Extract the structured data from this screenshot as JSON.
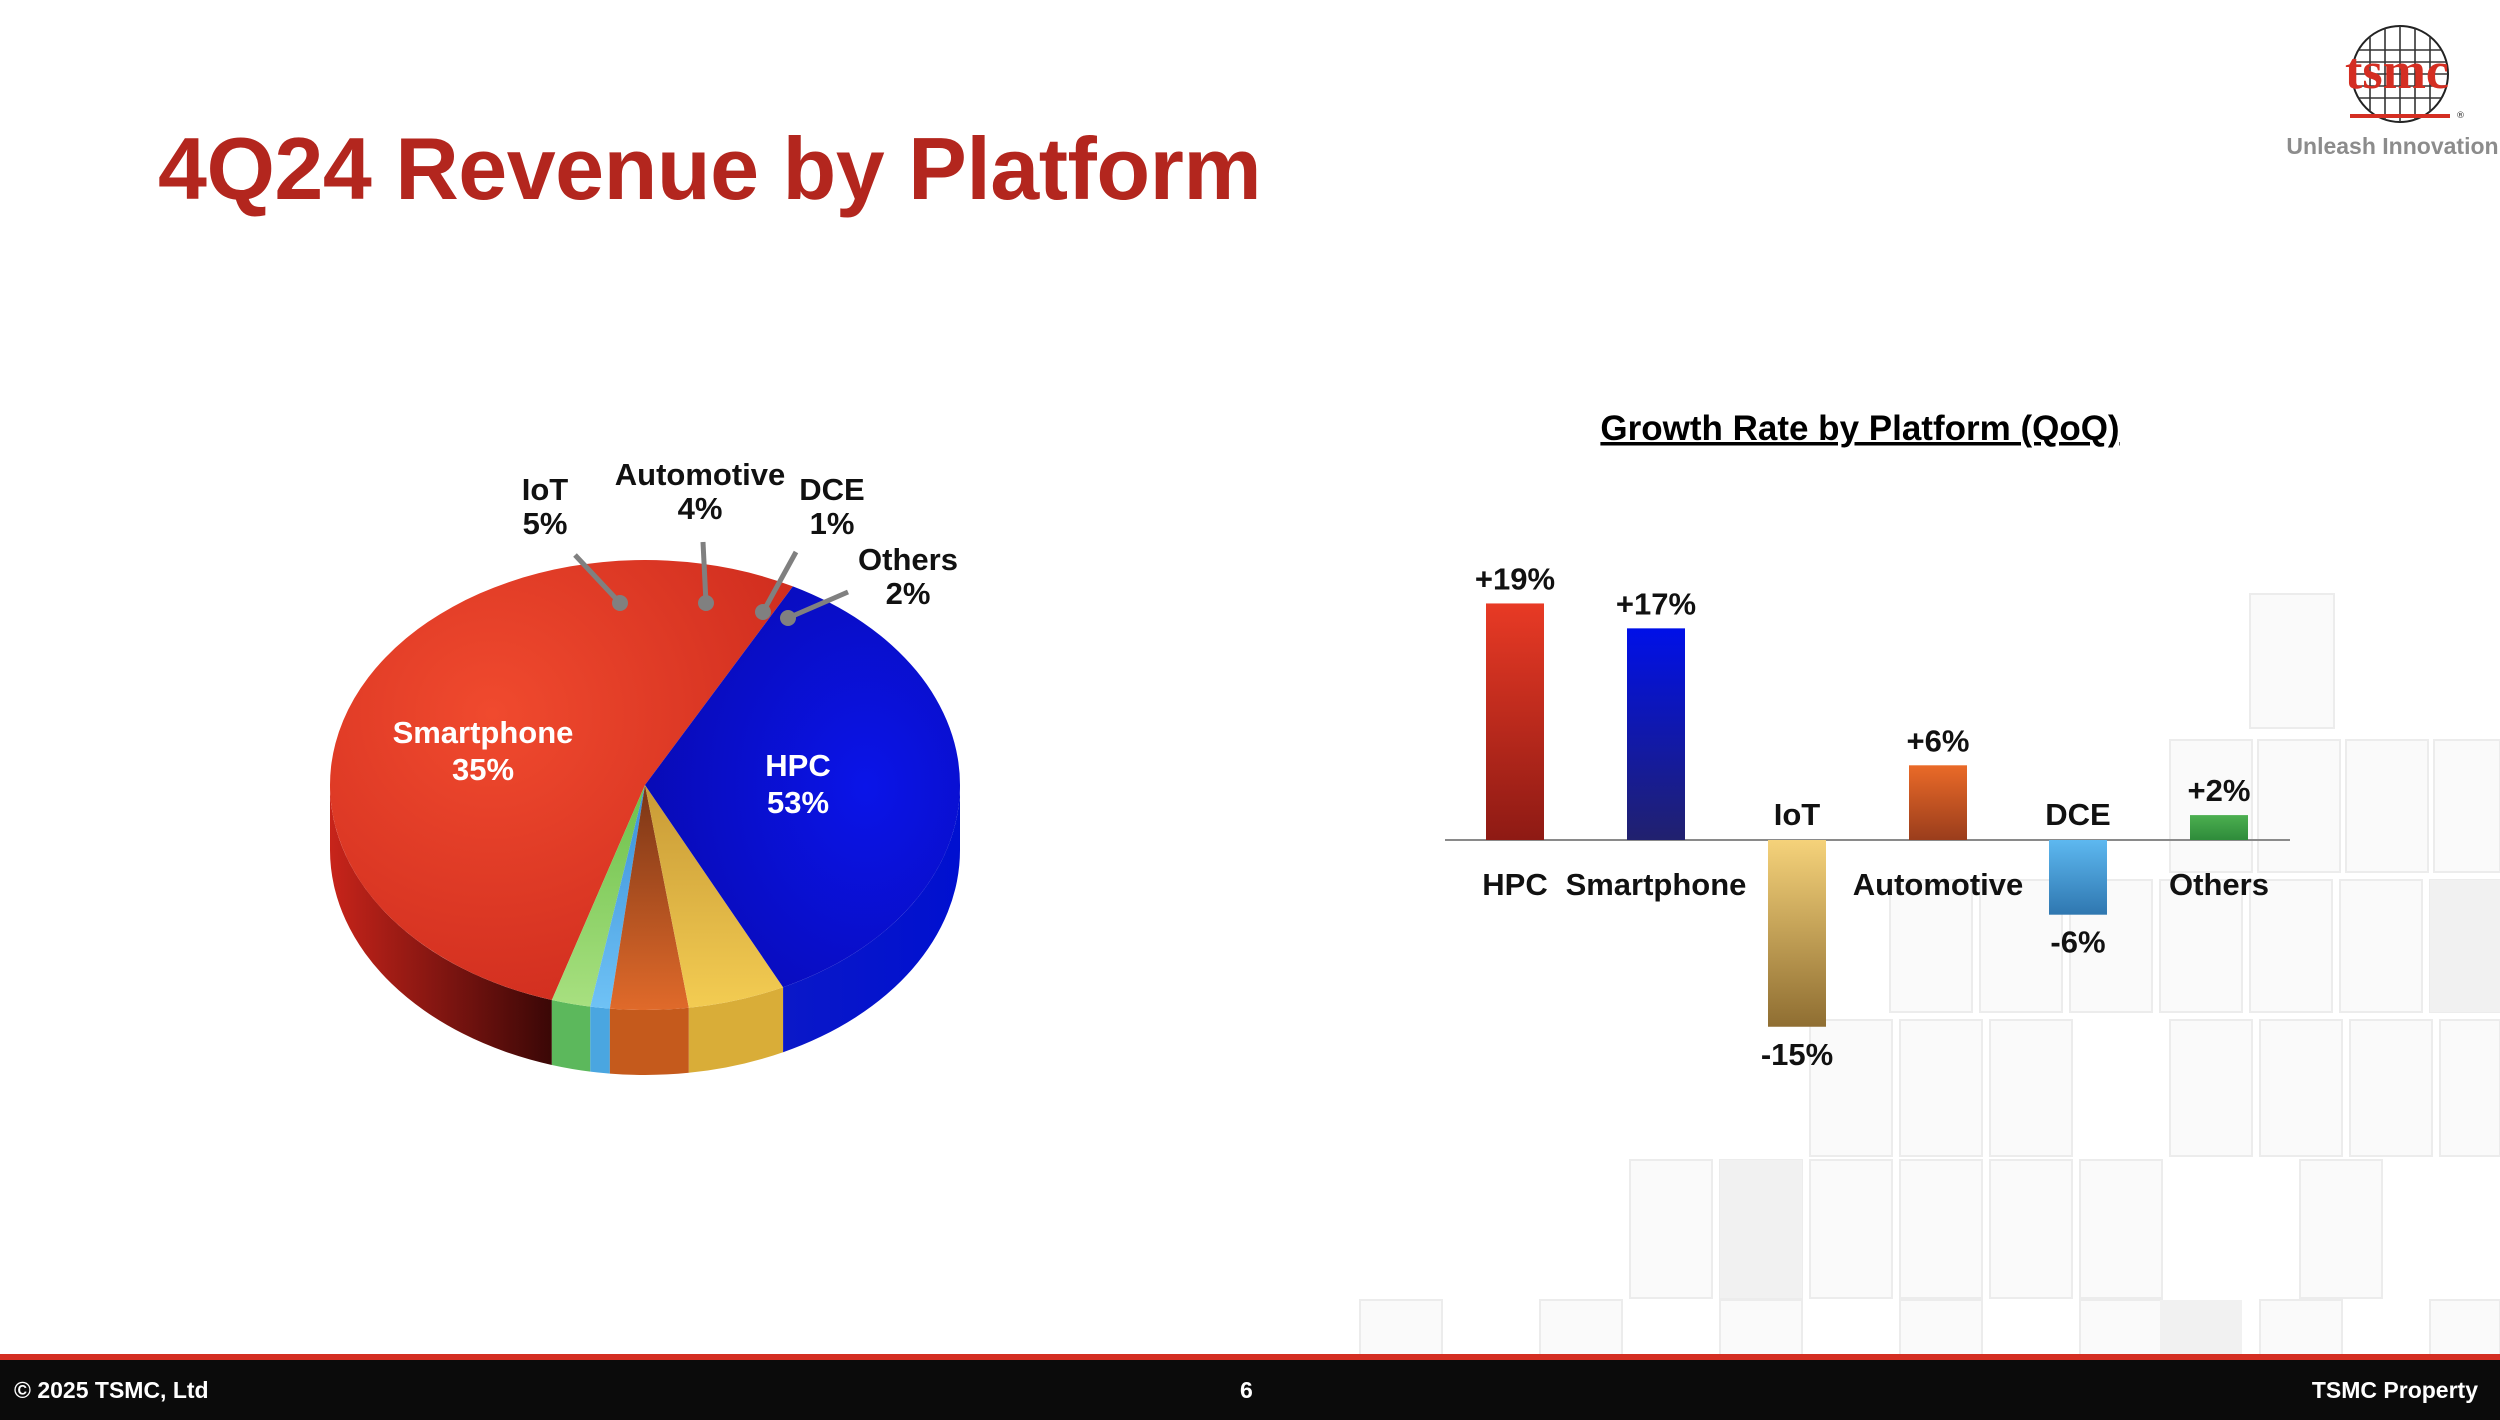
{
  "slide": {
    "title": "4Q24 Revenue by Platform",
    "logo_text": "tsmc",
    "tagline": "Unleash Innovation",
    "footer_left": "© 2025 TSMC, Ltd",
    "page_number": "6",
    "footer_right": "TSMC Property"
  },
  "colors": {
    "title": "#b3261e",
    "HPC": "#d83222",
    "Smartphone": "#0a14d8",
    "IoT": "#d9ad38",
    "Automotive": "#c55a1c",
    "DCE": "#4aa6e0",
    "Others": "#5cb85c"
  },
  "chart_data": [
    {
      "type": "pie",
      "title": "",
      "categories": [
        "HPC",
        "Smartphone",
        "IoT",
        "Automotive",
        "DCE",
        "Others"
      ],
      "values": [
        53,
        35,
        5,
        4,
        1,
        2
      ],
      "value_labels": [
        "53%",
        "35%",
        "5%",
        "4%",
        "1%",
        "2%"
      ],
      "style": "3d"
    },
    {
      "type": "bar",
      "title": "Growth Rate by Platform (QoQ)",
      "categories": [
        "HPC",
        "Smartphone",
        "IoT",
        "Automotive",
        "DCE",
        "Others"
      ],
      "values": [
        19,
        17,
        -15,
        6,
        -6,
        2
      ],
      "value_labels": [
        "+19%",
        "+17%",
        "-15%",
        "+6%",
        "-6%",
        "+2%"
      ],
      "unit": "%",
      "grid": false,
      "legend": "none"
    }
  ]
}
